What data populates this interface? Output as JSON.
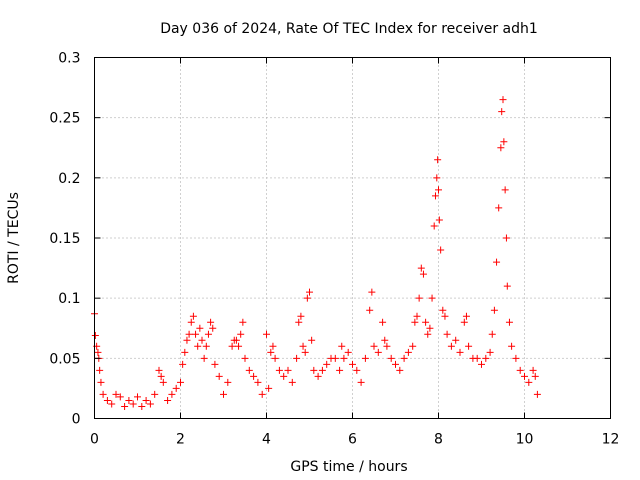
{
  "chart_data": {
    "type": "scatter",
    "title": "Day 036 of 2024, Rate Of TEC Index for receiver adh1",
    "xlabel": "GPS time / hours",
    "ylabel": "ROTI / TECUs",
    "xlim": [
      0,
      12
    ],
    "ylim": [
      0,
      0.3
    ],
    "xticks": [
      0,
      2,
      4,
      6,
      8,
      10,
      12
    ],
    "yticks": [
      0,
      0.05,
      0.1,
      0.15,
      0.2,
      0.25,
      0.3
    ],
    "xtick_labels": [
      "0",
      "2",
      "4",
      "6",
      "8",
      "10",
      "12"
    ],
    "ytick_labels": [
      "0",
      "0.05",
      "0.1",
      "0.15",
      "0.2",
      "0.25",
      "0.3"
    ],
    "grid": true,
    "legend": "none",
    "marker": "+",
    "series": [
      {
        "name": "ROTI",
        "color": "#ff0000",
        "points": [
          [
            0.0,
            0.087
          ],
          [
            0.02,
            0.069
          ],
          [
            0.05,
            0.06
          ],
          [
            0.08,
            0.055
          ],
          [
            0.1,
            0.05
          ],
          [
            0.12,
            0.04
          ],
          [
            0.15,
            0.03
          ],
          [
            0.2,
            0.02
          ],
          [
            0.3,
            0.015
          ],
          [
            0.4,
            0.012
          ],
          [
            0.5,
            0.02
          ],
          [
            0.6,
            0.018
          ],
          [
            0.7,
            0.01
          ],
          [
            0.8,
            0.015
          ],
          [
            0.9,
            0.012
          ],
          [
            1.0,
            0.018
          ],
          [
            1.1,
            0.01
          ],
          [
            1.2,
            0.015
          ],
          [
            1.3,
            0.012
          ],
          [
            1.4,
            0.02
          ],
          [
            1.5,
            0.04
          ],
          [
            1.55,
            0.035
          ],
          [
            1.6,
            0.03
          ],
          [
            1.7,
            0.015
          ],
          [
            1.8,
            0.02
          ],
          [
            1.9,
            0.025
          ],
          [
            2.0,
            0.03
          ],
          [
            2.05,
            0.045
          ],
          [
            2.1,
            0.055
          ],
          [
            2.15,
            0.065
          ],
          [
            2.2,
            0.07
          ],
          [
            2.25,
            0.08
          ],
          [
            2.3,
            0.085
          ],
          [
            2.35,
            0.07
          ],
          [
            2.4,
            0.06
          ],
          [
            2.45,
            0.075
          ],
          [
            2.5,
            0.065
          ],
          [
            2.55,
            0.05
          ],
          [
            2.6,
            0.06
          ],
          [
            2.65,
            0.07
          ],
          [
            2.7,
            0.08
          ],
          [
            2.75,
            0.075
          ],
          [
            2.8,
            0.045
          ],
          [
            2.9,
            0.035
          ],
          [
            3.0,
            0.02
          ],
          [
            3.1,
            0.03
          ],
          [
            3.2,
            0.06
          ],
          [
            3.25,
            0.065
          ],
          [
            3.3,
            0.065
          ],
          [
            3.35,
            0.06
          ],
          [
            3.4,
            0.07
          ],
          [
            3.45,
            0.08
          ],
          [
            3.5,
            0.05
          ],
          [
            3.6,
            0.04
          ],
          [
            3.7,
            0.035
          ],
          [
            3.8,
            0.03
          ],
          [
            3.9,
            0.02
          ],
          [
            4.0,
            0.07
          ],
          [
            4.05,
            0.025
          ],
          [
            4.1,
            0.055
          ],
          [
            4.15,
            0.06
          ],
          [
            4.2,
            0.05
          ],
          [
            4.3,
            0.04
          ],
          [
            4.4,
            0.035
          ],
          [
            4.5,
            0.04
          ],
          [
            4.6,
            0.03
          ],
          [
            4.7,
            0.05
          ],
          [
            4.75,
            0.08
          ],
          [
            4.8,
            0.085
          ],
          [
            4.85,
            0.06
          ],
          [
            4.9,
            0.055
          ],
          [
            4.95,
            0.1
          ],
          [
            5.0,
            0.105
          ],
          [
            5.05,
            0.065
          ],
          [
            5.1,
            0.04
          ],
          [
            5.2,
            0.035
          ],
          [
            5.3,
            0.04
          ],
          [
            5.4,
            0.045
          ],
          [
            5.5,
            0.05
          ],
          [
            5.6,
            0.05
          ],
          [
            5.7,
            0.04
          ],
          [
            5.75,
            0.06
          ],
          [
            5.8,
            0.05
          ],
          [
            5.9,
            0.055
          ],
          [
            6.0,
            0.045
          ],
          [
            6.1,
            0.04
          ],
          [
            6.2,
            0.03
          ],
          [
            6.3,
            0.05
          ],
          [
            6.4,
            0.09
          ],
          [
            6.45,
            0.105
          ],
          [
            6.5,
            0.06
          ],
          [
            6.6,
            0.055
          ],
          [
            6.7,
            0.08
          ],
          [
            6.75,
            0.065
          ],
          [
            6.8,
            0.06
          ],
          [
            6.9,
            0.05
          ],
          [
            7.0,
            0.045
          ],
          [
            7.1,
            0.04
          ],
          [
            7.2,
            0.05
          ],
          [
            7.3,
            0.055
          ],
          [
            7.4,
            0.06
          ],
          [
            7.45,
            0.08
          ],
          [
            7.5,
            0.085
          ],
          [
            7.55,
            0.1
          ],
          [
            7.6,
            0.125
          ],
          [
            7.65,
            0.12
          ],
          [
            7.7,
            0.08
          ],
          [
            7.75,
            0.07
          ],
          [
            7.8,
            0.075
          ],
          [
            7.85,
            0.1
          ],
          [
            7.9,
            0.16
          ],
          [
            7.93,
            0.185
          ],
          [
            7.96,
            0.2
          ],
          [
            7.98,
            0.215
          ],
          [
            8.0,
            0.19
          ],
          [
            8.02,
            0.165
          ],
          [
            8.05,
            0.14
          ],
          [
            8.1,
            0.09
          ],
          [
            8.15,
            0.085
          ],
          [
            8.2,
            0.07
          ],
          [
            8.3,
            0.06
          ],
          [
            8.4,
            0.065
          ],
          [
            8.5,
            0.055
          ],
          [
            8.6,
            0.08
          ],
          [
            8.65,
            0.085
          ],
          [
            8.7,
            0.06
          ],
          [
            8.8,
            0.05
          ],
          [
            8.9,
            0.05
          ],
          [
            9.0,
            0.045
          ],
          [
            9.1,
            0.05
          ],
          [
            9.2,
            0.055
          ],
          [
            9.25,
            0.07
          ],
          [
            9.3,
            0.09
          ],
          [
            9.35,
            0.13
          ],
          [
            9.4,
            0.175
          ],
          [
            9.45,
            0.225
          ],
          [
            9.47,
            0.255
          ],
          [
            9.5,
            0.265
          ],
          [
            9.52,
            0.23
          ],
          [
            9.55,
            0.19
          ],
          [
            9.58,
            0.15
          ],
          [
            9.6,
            0.11
          ],
          [
            9.65,
            0.08
          ],
          [
            9.7,
            0.06
          ],
          [
            9.8,
            0.05
          ],
          [
            9.9,
            0.04
          ],
          [
            10.0,
            0.035
          ],
          [
            10.1,
            0.03
          ],
          [
            10.2,
            0.04
          ],
          [
            10.25,
            0.035
          ],
          [
            10.3,
            0.02
          ]
        ]
      }
    ]
  }
}
